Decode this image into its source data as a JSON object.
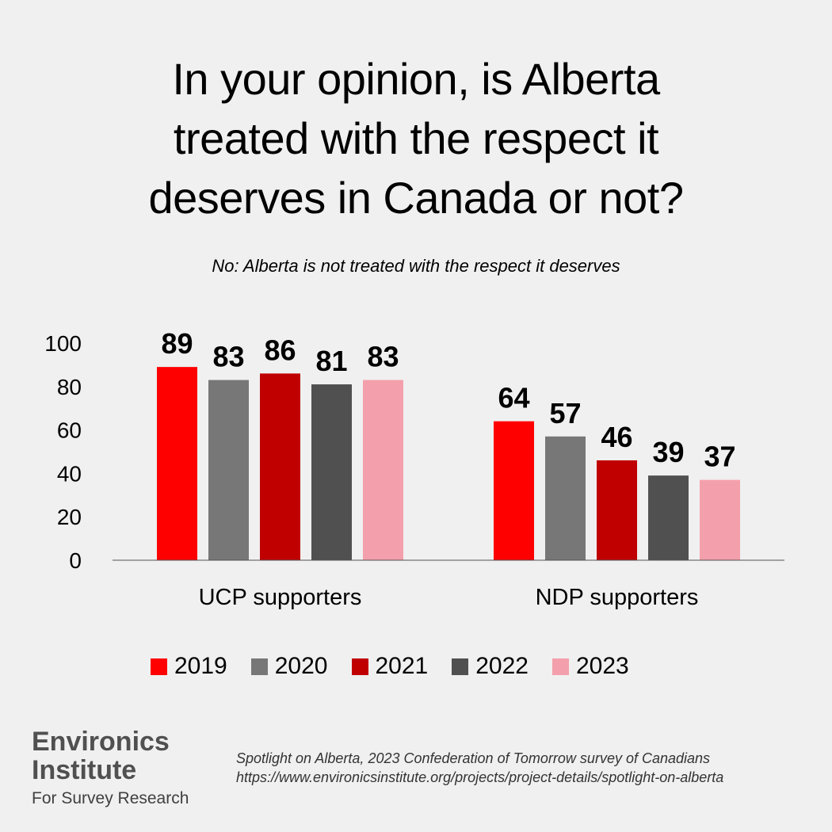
{
  "title_lines": [
    "In your opinion, is Alberta",
    "treated with the respect it",
    "deserves in Canada or not?"
  ],
  "subtitle": "No: Alberta is not treated with the respect it deserves",
  "chart_data": {
    "type": "bar",
    "categories": [
      "UCP supporters",
      "NDP supporters"
    ],
    "series": [
      {
        "name": "2019",
        "color": "#ff0000",
        "values": [
          89,
          64
        ]
      },
      {
        "name": "2020",
        "color": "#777777",
        "values": [
          83,
          57
        ]
      },
      {
        "name": "2021",
        "color": "#c00000",
        "values": [
          86,
          46
        ]
      },
      {
        "name": "2022",
        "color": "#505050",
        "values": [
          81,
          39
        ]
      },
      {
        "name": "2023",
        "color": "#f4a0ac",
        "values": [
          83,
          37
        ]
      }
    ],
    "yticks": [
      0,
      20,
      40,
      60,
      80,
      100
    ],
    "ylim": [
      0,
      100
    ],
    "grid": false,
    "legend_position": "bottom",
    "data_labels": true
  },
  "logo": {
    "line1": "Environics",
    "line2": "Institute",
    "line3": "For Survey Research"
  },
  "source": "Spotlight on Alberta, 2023 Confederation of Tomorrow survey of Canadians https://www.environicsinstitute.org/projects/project-details/spotlight-on-alberta"
}
